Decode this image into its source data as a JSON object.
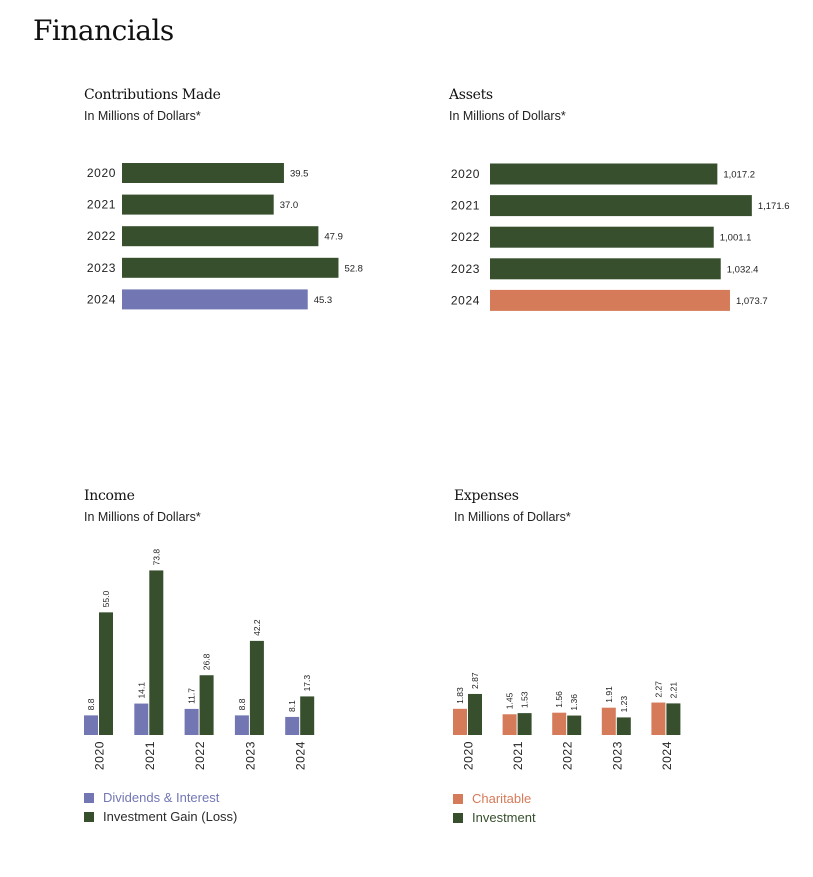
{
  "page_title": "Financials",
  "colors": {
    "green": "#374f2d",
    "purple": "#7277b4",
    "orange": "#d67b5a"
  },
  "panels": {
    "contributions": {
      "title": "Contributions Made",
      "subtitle": "In Millions of Dollars*"
    },
    "assets": {
      "title": "Assets",
      "subtitle": "In Millions of Dollars*"
    },
    "income": {
      "title": "Income",
      "subtitle": "In Millions of Dollars*"
    },
    "expenses": {
      "title": "Expenses",
      "subtitle": "In Millions of Dollars*"
    }
  },
  "chart_data": [
    {
      "id": "contributions",
      "type": "bar",
      "orientation": "horizontal",
      "title": "Contributions Made",
      "subtitle": "In Millions of Dollars*",
      "categories": [
        "2020",
        "2021",
        "2022",
        "2023",
        "2024"
      ],
      "values": [
        39.5,
        37.0,
        47.9,
        52.8,
        45.3
      ],
      "labels": [
        "39.5",
        "37.0",
        "47.9",
        "52.8",
        "45.3"
      ],
      "highlight_index": 4,
      "bar_color": "#374f2d",
      "highlight_color": "#7277b4"
    },
    {
      "id": "assets",
      "type": "bar",
      "orientation": "horizontal",
      "title": "Assets",
      "subtitle": "In Millions of Dollars*",
      "categories": [
        "2020",
        "2021",
        "2022",
        "2023",
        "2024"
      ],
      "values": [
        1017.2,
        1171.6,
        1001.1,
        1032.4,
        1073.7
      ],
      "labels": [
        "1,017.2",
        "1,171.6",
        "1,001.1",
        "1,032.4",
        "1,073.7"
      ],
      "highlight_index": 4,
      "bar_color": "#374f2d",
      "highlight_color": "#d67b5a"
    },
    {
      "id": "income",
      "type": "bar",
      "orientation": "vertical",
      "title": "Income",
      "subtitle": "In Millions of Dollars*",
      "categories": [
        "2020",
        "2021",
        "2022",
        "2023",
        "2024"
      ],
      "series": [
        {
          "name": "Dividends & Interest",
          "values": [
            8.8,
            14.1,
            11.7,
            8.8,
            8.1
          ],
          "labels": [
            "8.8",
            "14.1",
            "11.7",
            "8.8",
            "8.1"
          ],
          "color": "#7277b4"
        },
        {
          "name": "Investment Gain (Loss)",
          "values": [
            55.0,
            73.8,
            26.8,
            42.2,
            17.3
          ],
          "labels": [
            "55.0",
            "73.8",
            "26.8",
            "42.2",
            "17.3"
          ],
          "color": "#374f2d"
        }
      ],
      "legend": "bottom-left"
    },
    {
      "id": "expenses",
      "type": "bar",
      "orientation": "vertical",
      "title": "Expenses",
      "subtitle": "In Millions of Dollars*",
      "categories": [
        "2020",
        "2021",
        "2022",
        "2023",
        "2024"
      ],
      "series": [
        {
          "name": "Charitable",
          "values": [
            1.83,
            1.45,
            1.56,
            1.91,
            2.27
          ],
          "labels": [
            "1.83",
            "1.45",
            "1.56",
            "1.91",
            "2.27"
          ],
          "color": "#d67b5a"
        },
        {
          "name": "Investment",
          "values": [
            2.87,
            1.53,
            1.36,
            1.23,
            2.21
          ],
          "labels": [
            "2.87",
            "1.53",
            "1.36",
            "1.23",
            "2.21"
          ],
          "color": "#374f2d"
        }
      ],
      "legend": "bottom-left"
    }
  ]
}
